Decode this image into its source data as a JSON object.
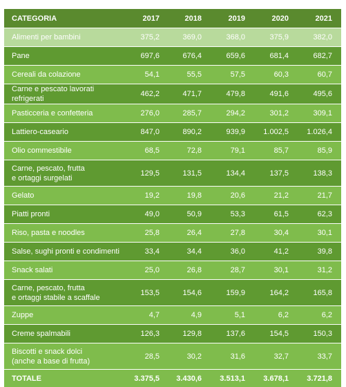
{
  "table": {
    "header": [
      "CATEGORIA",
      "2017",
      "2018",
      "2019",
      "2020",
      "2021"
    ]
  },
  "chart_data": {
    "type": "table",
    "columns": [
      "CATEGORIA",
      "2017",
      "2018",
      "2019",
      "2020",
      "2021"
    ],
    "rows": [
      {
        "category": "Alimenti per bambini",
        "values": [
          "375,2",
          "369,0",
          "368,0",
          "375,9",
          "382,0"
        ]
      },
      {
        "category": "Pane",
        "values": [
          "697,6",
          "676,4",
          "659,6",
          "681,4",
          "682,7"
        ]
      },
      {
        "category": "Cereali da colazione",
        "values": [
          "54,1",
          "55,5",
          "57,5",
          "60,3",
          "60,7"
        ]
      },
      {
        "category": "Carne e pescato lavorati refrigerati",
        "values": [
          "462,2",
          "471,7",
          "479,8",
          "491,6",
          "495,6"
        ]
      },
      {
        "category": "Pasticceria e confetteria",
        "values": [
          "276,0",
          "285,7",
          "294,2",
          "301,2",
          "309,1"
        ]
      },
      {
        "category": "Lattiero-caseario",
        "values": [
          "847,0",
          "890,2",
          "939,9",
          "1.002,5",
          "1.026,4"
        ]
      },
      {
        "category": "Olio commestibile",
        "values": [
          "68,5",
          "72,8",
          "79,1",
          "85,7",
          "85,9"
        ]
      },
      {
        "category": "Carne, pescato, frutta\ne ortaggi surgelati",
        "values": [
          "129,5",
          "131,5",
          "134,4",
          "137,5",
          "138,3"
        ]
      },
      {
        "category": "Gelato",
        "values": [
          "19,2",
          "19,8",
          "20,6",
          "21,2",
          "21,7"
        ]
      },
      {
        "category": "Piatti pronti",
        "values": [
          "49,0",
          "50,9",
          "53,3",
          "61,5",
          "62,3"
        ]
      },
      {
        "category": "Riso, pasta e noodles",
        "values": [
          "25,8",
          "26,4",
          "27,8",
          "30,4",
          "30,1"
        ]
      },
      {
        "category": "Salse, sughi pronti e condimenti",
        "values": [
          "33,4",
          "34,4",
          "36,0",
          "41,2",
          "39,8"
        ]
      },
      {
        "category": "Snack salati",
        "values": [
          "25,0",
          "26,8",
          "28,7",
          "30,1",
          "31,2"
        ]
      },
      {
        "category": "Carne, pescato, frutta\ne ortaggi stabile a scaffale",
        "values": [
          "153,5",
          "154,6",
          "159,9",
          "164,2",
          "165,8"
        ]
      },
      {
        "category": "Zuppe",
        "values": [
          "4,7",
          "4,9",
          "5,1",
          "6,2",
          "6,2"
        ]
      },
      {
        "category": "Creme spalmabili",
        "values": [
          "126,3",
          "129,8",
          "137,6",
          "154,5",
          "150,3"
        ]
      },
      {
        "category": "Biscotti e snack dolci\n(anche a base di frutta)",
        "values": [
          "28,5",
          "30,2",
          "31,6",
          "32,7",
          "33,7"
        ]
      }
    ],
    "total": {
      "category": "TOTALE",
      "values": [
        "3.375,5",
        "3.430,6",
        "3.513,1",
        "3.678,1",
        "3.721,8"
      ]
    }
  }
}
